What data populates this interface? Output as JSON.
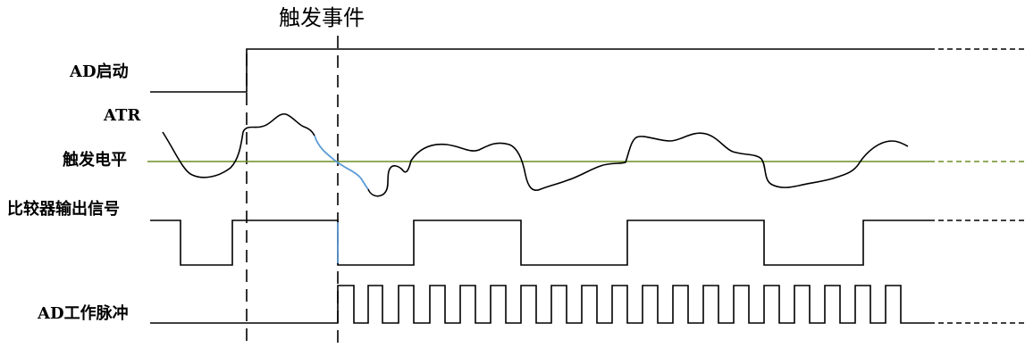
{
  "event_label": "触发事件",
  "signals": {
    "ad_start": "AD启动",
    "atr": "ATR",
    "trigger_level": "触发电平",
    "comparator_output": "比较器输出信号",
    "ad_work_pulse": "AD工作脉冲"
  },
  "colors": {
    "trace": "#000000",
    "trigger_level_line": "#6b8e23",
    "highlight": "#5b9bd5"
  }
}
